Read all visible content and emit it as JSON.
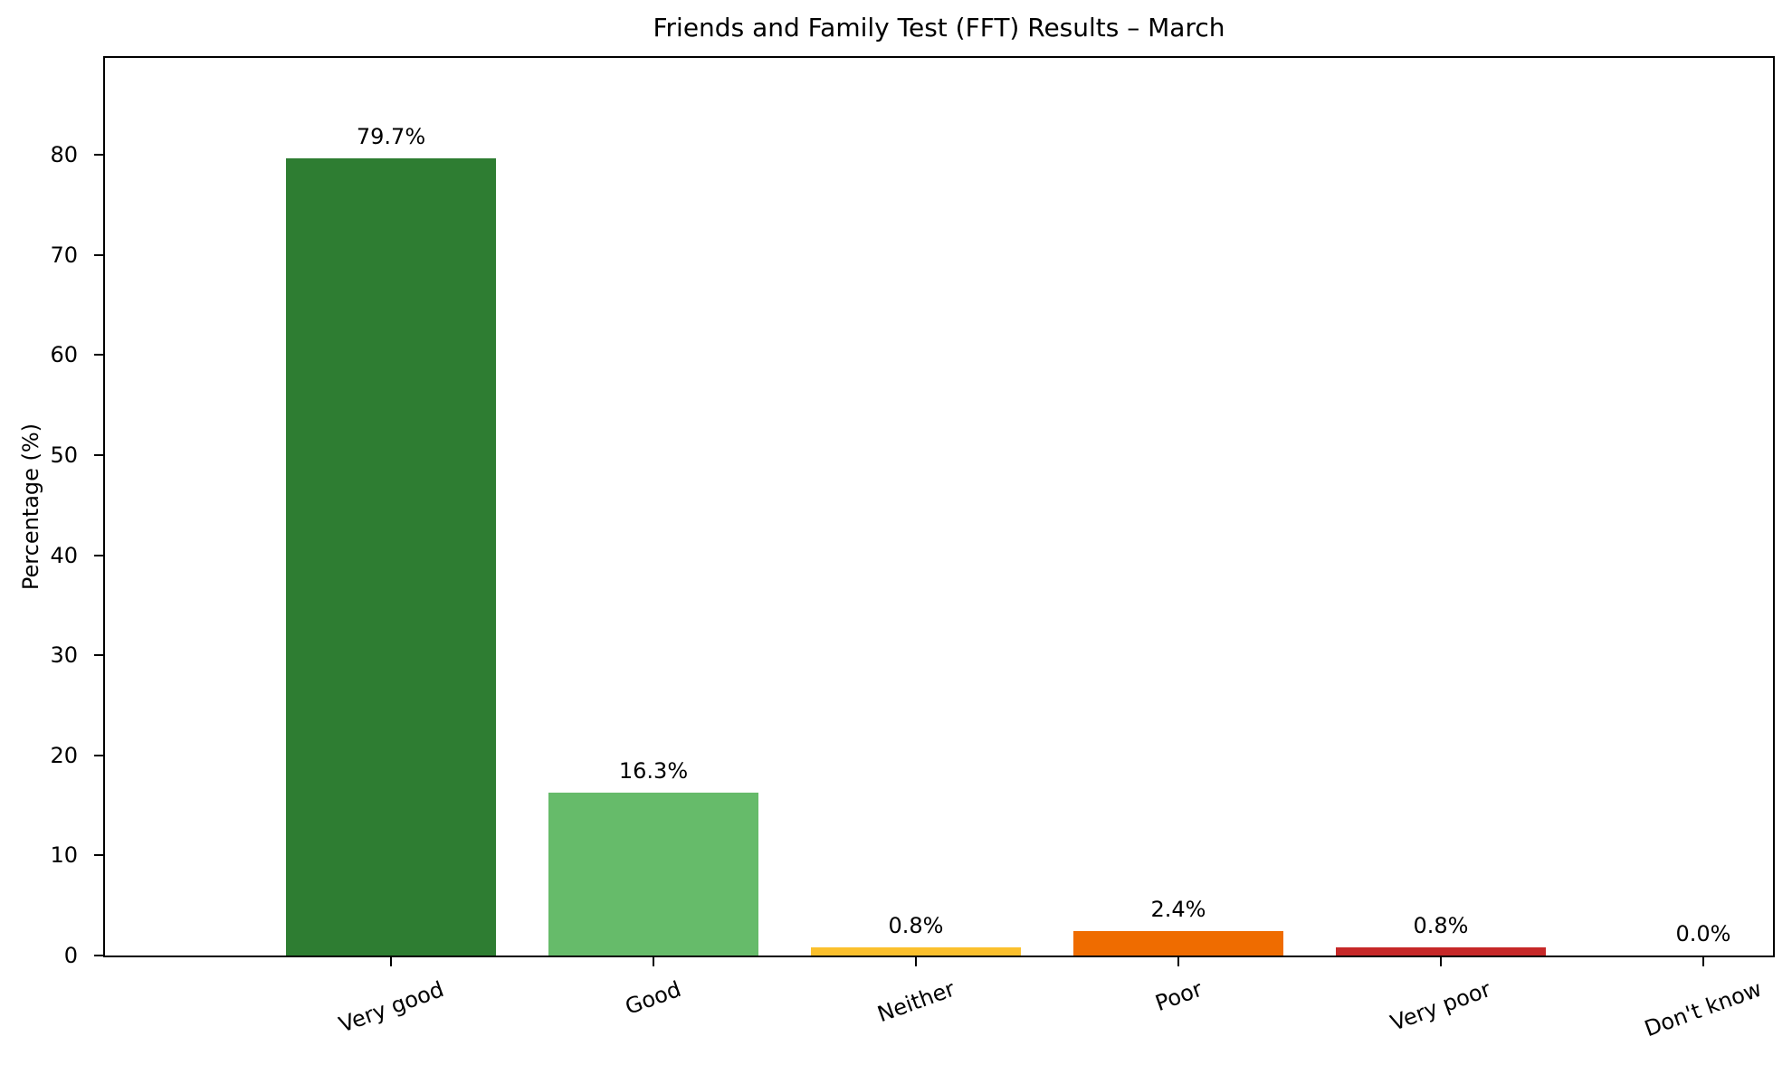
{
  "chart_data": {
    "type": "bar",
    "title": "Friends and Family Test (FFT) Results – March",
    "xlabel": "",
    "ylabel": "Percentage (%)",
    "categories": [
      "Very good",
      "Good",
      "Neither",
      "Poor",
      "Very poor",
      "Don't know"
    ],
    "values": [
      79.7,
      16.3,
      0.8,
      2.4,
      0.8,
      0.0
    ],
    "value_labels": [
      "79.7%",
      "16.3%",
      "0.8%",
      "2.4%",
      "0.8%",
      "0.0%"
    ],
    "colors": [
      "#2e7d32",
      "#66bb6a",
      "#fbc02d",
      "#ef6c00",
      "#c62828",
      "#757575"
    ],
    "ylim": [
      0,
      89.7
    ],
    "yticks": [
      0,
      10,
      20,
      30,
      40,
      50,
      60,
      70,
      80
    ],
    "ytick_labels": [
      "0",
      "10",
      "20",
      "30",
      "40",
      "50",
      "60",
      "70",
      "80"
    ],
    "xtick_rotation": -20,
    "grid": false,
    "legend": null
  }
}
